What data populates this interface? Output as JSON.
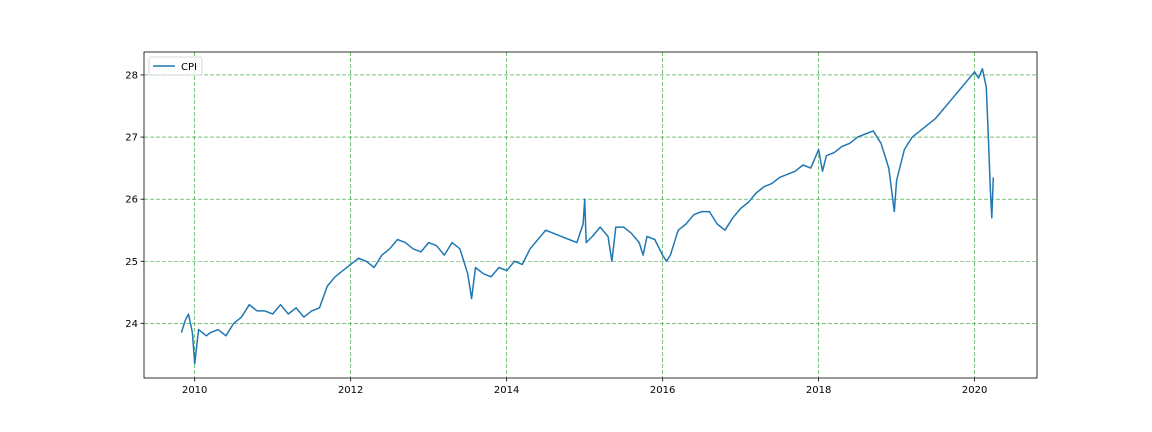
{
  "chart_data": {
    "type": "line",
    "title": "",
    "xlabel": "",
    "ylabel": "",
    "xlim": [
      2009.35,
      2020.8
    ],
    "ylim": [
      23.12,
      28.37
    ],
    "x_ticks": [
      {
        "value": 2010,
        "label": "2010"
      },
      {
        "value": 2012,
        "label": "2012"
      },
      {
        "value": 2014,
        "label": "2014"
      },
      {
        "value": 2016,
        "label": "2016"
      },
      {
        "value": 2018,
        "label": "2018"
      },
      {
        "value": 2020,
        "label": "2020"
      }
    ],
    "y_ticks": [
      {
        "value": 24,
        "label": "24"
      },
      {
        "value": 25,
        "label": "25"
      },
      {
        "value": 26,
        "label": "26"
      },
      {
        "value": 27,
        "label": "27"
      },
      {
        "value": 28,
        "label": "28"
      }
    ],
    "grid": true,
    "grid_color": "#2ca02c",
    "legend_position": "upper-left",
    "series": [
      {
        "name": "CPI",
        "color": "#1f77b4",
        "x": [
          2009.83,
          2009.88,
          2009.92,
          2009.97,
          2010.0,
          2010.05,
          2010.1,
          2010.15,
          2010.2,
          2010.3,
          2010.4,
          2010.5,
          2010.6,
          2010.7,
          2010.8,
          2010.9,
          2011.0,
          2011.1,
          2011.2,
          2011.3,
          2011.4,
          2011.5,
          2011.6,
          2011.7,
          2011.8,
          2011.9,
          2012.0,
          2012.1,
          2012.2,
          2012.3,
          2012.4,
          2012.5,
          2012.6,
          2012.7,
          2012.8,
          2012.9,
          2013.0,
          2013.1,
          2013.2,
          2013.3,
          2013.4,
          2013.5,
          2013.55,
          2013.6,
          2013.7,
          2013.8,
          2013.9,
          2014.0,
          2014.1,
          2014.2,
          2014.3,
          2014.4,
          2014.5,
          2014.6,
          2014.7,
          2014.8,
          2014.9,
          2014.98,
          2015.0,
          2015.02,
          2015.1,
          2015.2,
          2015.3,
          2015.35,
          2015.4,
          2015.5,
          2015.6,
          2015.7,
          2015.75,
          2015.8,
          2015.9,
          2016.0,
          2016.05,
          2016.1,
          2016.2,
          2016.3,
          2016.4,
          2016.5,
          2016.6,
          2016.7,
          2016.8,
          2016.9,
          2017.0,
          2017.1,
          2017.2,
          2017.3,
          2017.4,
          2017.5,
          2017.6,
          2017.7,
          2017.8,
          2017.9,
          2018.0,
          2018.05,
          2018.1,
          2018.2,
          2018.3,
          2018.4,
          2018.5,
          2018.6,
          2018.7,
          2018.8,
          2018.9,
          2018.97,
          2019.0,
          2019.1,
          2019.2,
          2019.3,
          2019.4,
          2019.5,
          2019.6,
          2019.7,
          2019.8,
          2019.9,
          2020.0,
          2020.05,
          2020.1,
          2020.15,
          2020.18,
          2020.2,
          2020.22,
          2020.24
        ],
        "values": [
          23.85,
          24.05,
          24.15,
          23.85,
          23.35,
          23.9,
          23.85,
          23.8,
          23.85,
          23.9,
          23.8,
          24.0,
          24.1,
          24.3,
          24.2,
          24.2,
          24.15,
          24.3,
          24.15,
          24.25,
          24.1,
          24.2,
          24.25,
          24.6,
          24.75,
          24.85,
          24.95,
          25.05,
          25.0,
          24.9,
          25.1,
          25.2,
          25.35,
          25.3,
          25.2,
          25.15,
          25.3,
          25.25,
          25.1,
          25.3,
          25.2,
          24.8,
          24.4,
          24.9,
          24.8,
          24.75,
          24.9,
          24.85,
          25.0,
          24.95,
          25.2,
          25.35,
          25.5,
          25.45,
          25.4,
          25.35,
          25.3,
          25.6,
          26.0,
          25.3,
          25.4,
          25.55,
          25.4,
          25.0,
          25.55,
          25.55,
          25.45,
          25.3,
          25.1,
          25.4,
          25.35,
          25.1,
          25.0,
          25.1,
          25.5,
          25.6,
          25.75,
          25.8,
          25.8,
          25.6,
          25.5,
          25.7,
          25.85,
          25.95,
          26.1,
          26.2,
          26.25,
          26.35,
          26.4,
          26.45,
          26.55,
          26.5,
          26.8,
          26.45,
          26.7,
          26.75,
          26.85,
          26.9,
          27.0,
          27.05,
          27.1,
          26.9,
          26.5,
          25.8,
          26.3,
          26.8,
          27.0,
          27.1,
          27.2,
          27.3,
          27.45,
          27.6,
          27.75,
          27.9,
          28.05,
          27.95,
          28.1,
          27.8,
          26.9,
          26.2,
          25.7,
          26.35
        ]
      }
    ]
  }
}
